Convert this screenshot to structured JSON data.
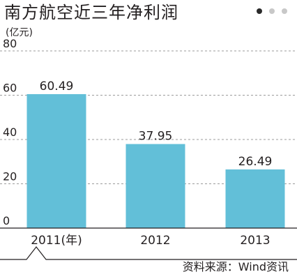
{
  "header": {
    "title": "南方航空近三年净利润",
    "pager": {
      "pages": 3,
      "active": 1
    }
  },
  "footer": {
    "source": "资料来源：Wind资讯"
  },
  "colors": {
    "bar": "#62bfd8",
    "grid": "#9b9b9b",
    "axis": "#231f20",
    "text": "#231f20"
  },
  "chart_data": {
    "type": "bar",
    "title": "南方航空近三年净利润",
    "ylabel": "(亿元)",
    "xlabel": "",
    "categories": [
      "2011(年)",
      "2012",
      "2013"
    ],
    "values": [
      60.49,
      37.95,
      26.49
    ],
    "data_labels": [
      "60.49",
      "37.95",
      "26.49"
    ],
    "ylim": [
      0,
      80
    ],
    "yticks": [
      0,
      20,
      40,
      60,
      80
    ],
    "ytick_labels": [
      "0",
      "20",
      "40",
      "60",
      "80"
    ],
    "grid": true,
    "legend": "none"
  }
}
